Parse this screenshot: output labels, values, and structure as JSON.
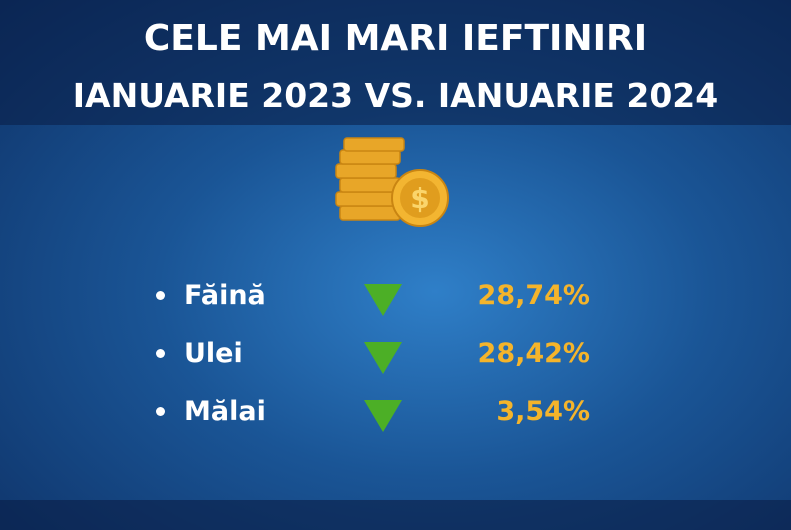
{
  "header": {
    "title": "CELE MAI MARI IEFTINIRI",
    "subtitle": "IANUARIE 2023 VS. IANUARIE 2024"
  },
  "items": [
    {
      "name": "Făină",
      "value": "28,74%"
    },
    {
      "name": "Ulei",
      "value": "28,42%"
    },
    {
      "name": "Mălai",
      "value": "3,54%"
    }
  ]
}
